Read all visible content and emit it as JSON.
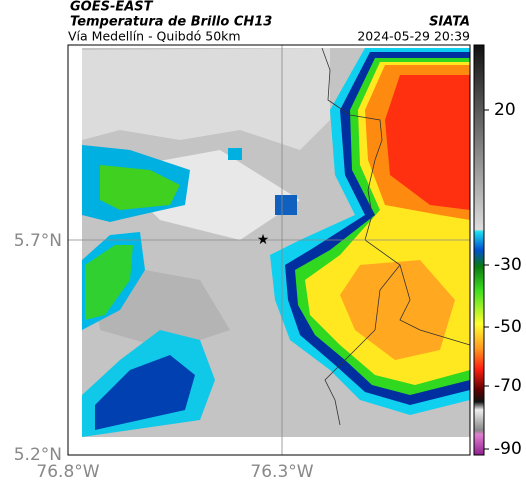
{
  "header": {
    "satellite": "GOES-EAST",
    "product": "Temperatura de Brillo CH13",
    "region": "Vía Medellín - Quibdó 50km",
    "source": "SIATA",
    "timestamp": "2024-05-29 20:39"
  },
  "map": {
    "lat_labels": [
      "5.7°N",
      "5.2°N"
    ],
    "lon_labels": [
      "76.8°W",
      "76.3°W"
    ]
  },
  "colorbar": {
    "ticks": [
      20,
      -30,
      -50,
      -70,
      -90
    ]
  }
}
